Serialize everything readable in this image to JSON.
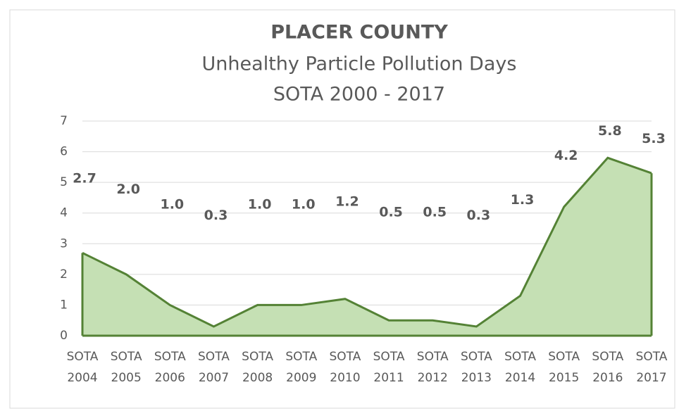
{
  "chart_data": {
    "type": "area",
    "title": "PLACER COUNTY",
    "subtitle": [
      "Unhealthy Particle Pollution Days",
      "SOTA 2000 - 2017"
    ],
    "categories": [
      "SOTA 2004",
      "SOTA 2005",
      "SOTA 2006",
      "SOTA 2007",
      "SOTA 2008",
      "SOTA 2009",
      "SOTA 2010",
      "SOTA 2011",
      "SOTA 2012",
      "SOTA 2013",
      "SOTA 2014",
      "SOTA 2015",
      "SOTA 2016",
      "SOTA 2017"
    ],
    "values": [
      2.7,
      2.0,
      1.0,
      0.3,
      1.0,
      1.0,
      1.2,
      0.5,
      0.5,
      0.3,
      1.3,
      4.2,
      5.8,
      5.3
    ],
    "value_labels": [
      "2.7",
      "2.0",
      "1.0",
      "0.3",
      "1.0",
      "1.0",
      "1.2",
      "0.5",
      "0.5",
      "0.3",
      "1.3",
      "4.2",
      "5.8",
      "5.3"
    ],
    "color": "#548235",
    "fill": "#c5e0b4",
    "ylim": [
      0,
      7
    ],
    "yticks": [
      0,
      1,
      2,
      3,
      4,
      5,
      6,
      7
    ],
    "grid": true
  }
}
